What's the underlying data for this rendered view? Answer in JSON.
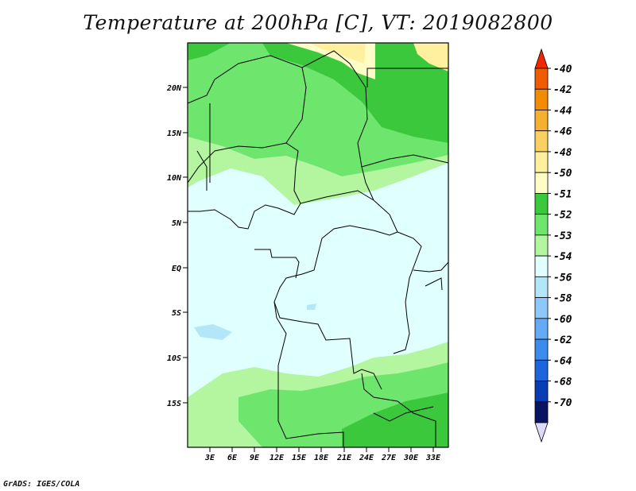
{
  "title": "Temperature at 200hPa [C], VT: 2019082800",
  "credit": "GrADS: IGES/COLA",
  "map": {
    "lat_labels": [
      "20N",
      "15N",
      "10N",
      "5N",
      "EQ",
      "5S",
      "10S",
      "15S"
    ],
    "lon_labels": [
      "3E",
      "6E",
      "9E",
      "12E",
      "15E",
      "18E",
      "21E",
      "24E",
      "27E",
      "30E",
      "33E"
    ]
  },
  "colorbar": {
    "labels": [
      "-40",
      "-42",
      "-44",
      "-46",
      "-48",
      "-50",
      "-51",
      "-52",
      "-53",
      "-54",
      "-56",
      "-58",
      "-60",
      "-62",
      "-64",
      "-68",
      "-70"
    ],
    "colors": [
      "#f22600",
      "#f25c00",
      "#f28c00",
      "#f5b030",
      "#fad060",
      "#fff0a0",
      "#fffcc8",
      "#3cc83c",
      "#6ee66e",
      "#b4f5a0",
      "#e0ffff",
      "#b4e6fa",
      "#8cc8fa",
      "#64aaf5",
      "#3c8cf0",
      "#1e64dc",
      "#0a3cb4",
      "#0a1464",
      "#dcdcfa"
    ]
  }
}
